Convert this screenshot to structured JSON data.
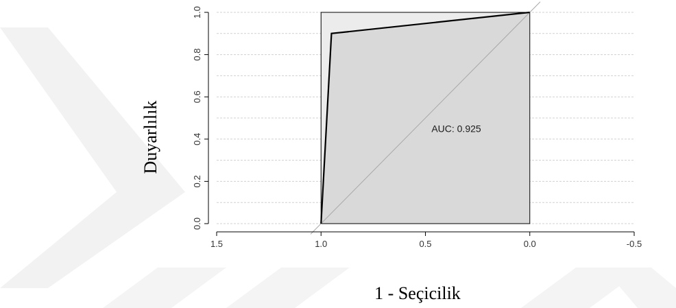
{
  "chart_data": {
    "type": "line",
    "title": "",
    "xlabel": "1 - Seçicilik",
    "ylabel": "Duyarlılık",
    "x_axis_reversed": true,
    "xlim": [
      1.5,
      -0.5
    ],
    "ylim": [
      0.0,
      1.0
    ],
    "x_ticks": [
      1.5,
      1.0,
      0.5,
      0.0,
      -0.5
    ],
    "x_tick_labels": [
      "1.5",
      "1.0",
      "0.5",
      "0.0",
      "-0.5"
    ],
    "y_ticks": [
      0.0,
      0.2,
      0.4,
      0.6,
      0.8,
      1.0
    ],
    "y_tick_labels": [
      "0.0",
      "0.2",
      "0.4",
      "0.6",
      "0.8",
      "1.0"
    ],
    "grid": true,
    "series": [
      {
        "x": [
          1.0,
          0.95,
          0.0
        ],
        "y": [
          0.0,
          0.9,
          1.0
        ]
      }
    ],
    "reference_line": {
      "x": [
        1.0,
        0.0
      ],
      "y": [
        0.0,
        1.0
      ]
    },
    "auc_annotation": {
      "text": "AUC: 0.925",
      "x": 0.5,
      "y": 0.45
    },
    "colors": {
      "roc_line": "#000000",
      "auc_fill": "#d9d9d9",
      "unit_square_fill": "#ececec",
      "reference_line": "#a8a8a8",
      "grid": "#d0d0d0",
      "watermark": "#f0f0f0"
    }
  }
}
